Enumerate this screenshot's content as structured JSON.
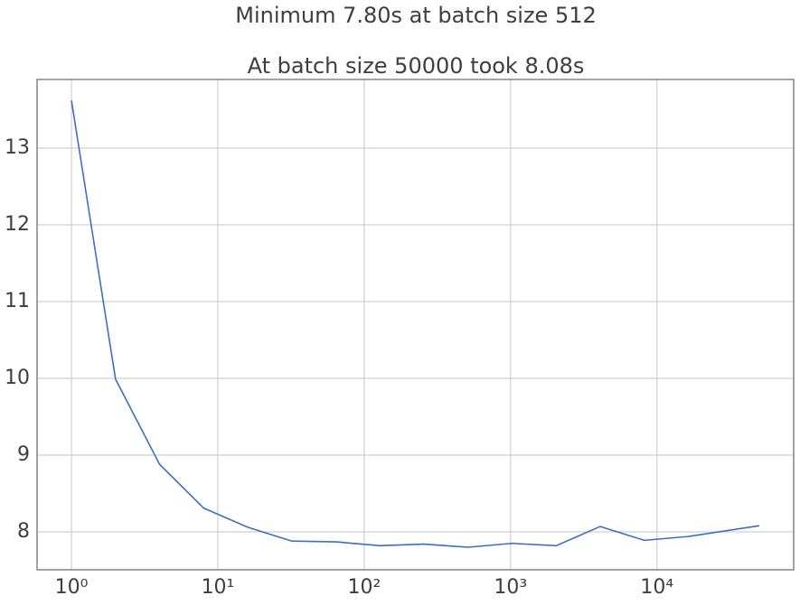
{
  "chart_data": {
    "type": "line",
    "title": "Minimum 7.80s at batch size 512",
    "subtitle": "At batch size 50000 took 8.08s",
    "x": [
      1,
      2,
      4,
      8,
      16,
      32,
      64,
      128,
      256,
      512,
      1024,
      2048,
      4096,
      8192,
      16384,
      50000
    ],
    "series": [
      {
        "color": "#3a6fc4",
        "values": [
          13.62,
          9.99,
          8.88,
          8.31,
          8.06,
          7.88,
          7.87,
          7.82,
          7.84,
          7.8,
          7.85,
          7.82,
          8.07,
          7.89,
          7.94,
          8.08
        ]
      }
    ],
    "xscale": "log",
    "xlim": [
      0.582,
      85900
    ],
    "xticks": [
      {
        "value": 1,
        "label": "10⁰"
      },
      {
        "value": 10,
        "label": "10¹"
      },
      {
        "value": 100,
        "label": "10²"
      },
      {
        "value": 1000,
        "label": "10³"
      },
      {
        "value": 10000,
        "label": "10⁴"
      }
    ],
    "ylim": [
      7.506,
      13.894
    ],
    "yticks": [
      8,
      9,
      10,
      11,
      12,
      13
    ],
    "grid": true
  }
}
